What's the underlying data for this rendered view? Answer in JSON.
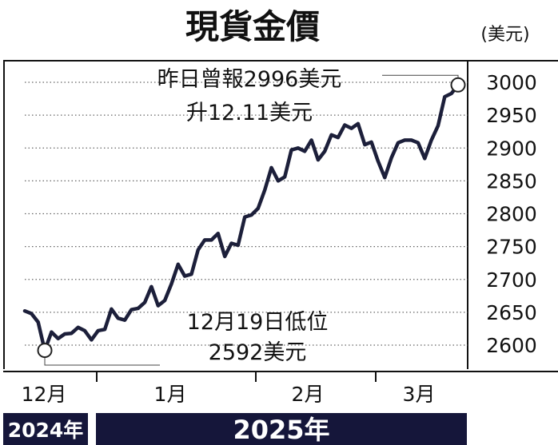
{
  "chart_data": {
    "type": "line",
    "title": "現貨金價",
    "unit_label": "(美元)",
    "ylim": [
      2570,
      3040
    ],
    "yticks": [
      2600,
      2650,
      2700,
      2750,
      2800,
      2850,
      2900,
      2950,
      3000
    ],
    "grid": true,
    "series": [
      {
        "values": [
          2652,
          2648,
          2635,
          2592,
          2620,
          2610,
          2617,
          2618,
          2627,
          2622,
          2608,
          2622,
          2624,
          2655,
          2641,
          2638,
          2654,
          2656,
          2665,
          2689,
          2660,
          2668,
          2693,
          2723,
          2705,
          2708,
          2745,
          2760,
          2760,
          2770,
          2735,
          2755,
          2752,
          2795,
          2798,
          2808,
          2836,
          2870,
          2850,
          2856,
          2897,
          2900,
          2895,
          2912,
          2882,
          2895,
          2920,
          2916,
          2935,
          2930,
          2937,
          2905,
          2909,
          2880,
          2855,
          2885,
          2908,
          2912,
          2912,
          2908,
          2884,
          2912,
          2934,
          2978,
          2983,
          2996
        ]
      }
    ],
    "x_labels": [
      "12月",
      "1月",
      "2月",
      "3月"
    ],
    "year_labels": [
      "2024年",
      "2025年"
    ],
    "annotations": {
      "high_line1": "昨日曾報2996美元",
      "high_line2": "升12.11美元",
      "low_line1": "12月19日低位",
      "low_line2": "2592美元"
    }
  }
}
